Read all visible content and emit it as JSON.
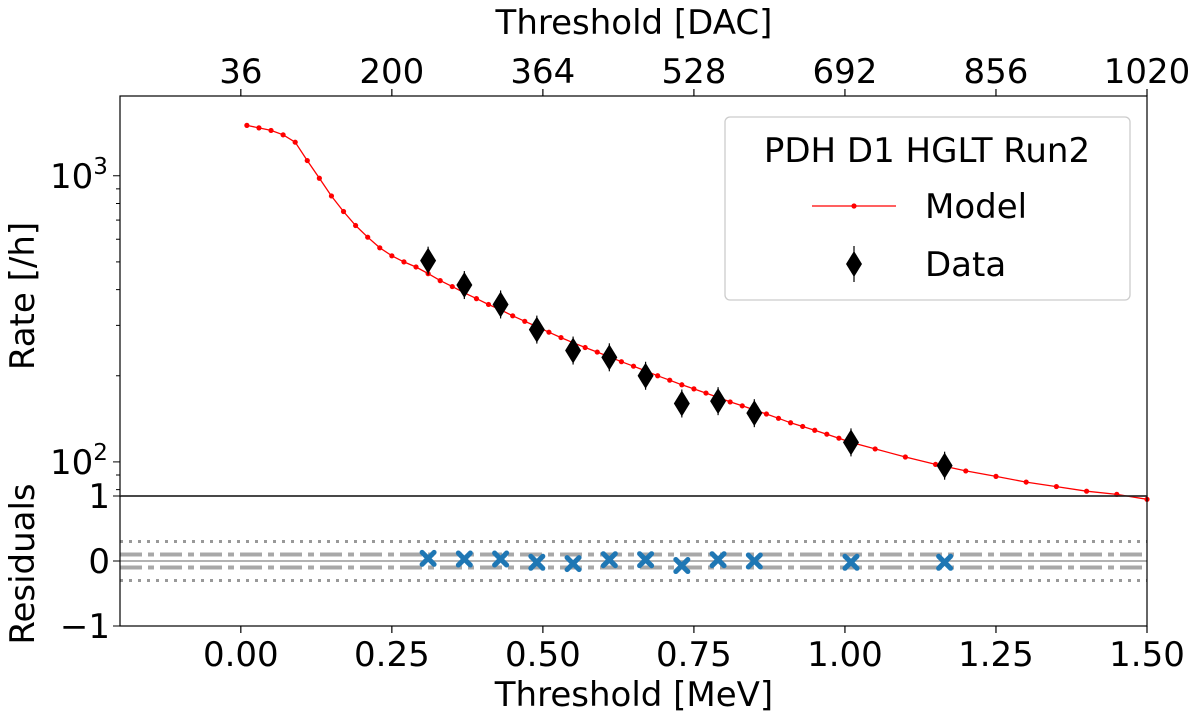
{
  "chart_data": [
    {
      "type": "line",
      "panel": "main",
      "x_top_label": "Threshold [DAC]",
      "x_top_ticks": [
        "36",
        "200",
        "364",
        "528",
        "692",
        "856",
        "1020"
      ],
      "ylabel": "Rate [/h]",
      "y_scale": "log",
      "y_ticks": [
        {
          "value": 100,
          "base": "10",
          "exp": "2"
        },
        {
          "value": 1000,
          "base": "10",
          "exp": "3"
        }
      ],
      "xlim": [
        -0.2,
        1.5
      ],
      "ylim": [
        76,
        1900
      ],
      "grid": false,
      "legend": {
        "position": "top-right",
        "title": "PDH D1 HGLT Run2",
        "entries": [
          {
            "label": "Model",
            "color": "#ff0000",
            "marker": "dot-line"
          },
          {
            "label": "Data",
            "color": "#000000",
            "marker": "diamond"
          }
        ]
      },
      "series": [
        {
          "name": "Model",
          "color": "#ff0000",
          "x": [
            0.01,
            0.03,
            0.05,
            0.07,
            0.09,
            0.11,
            0.13,
            0.15,
            0.17,
            0.19,
            0.21,
            0.23,
            0.25,
            0.27,
            0.29,
            0.31,
            0.33,
            0.35,
            0.37,
            0.39,
            0.41,
            0.43,
            0.45,
            0.47,
            0.49,
            0.51,
            0.53,
            0.55,
            0.57,
            0.59,
            0.61,
            0.63,
            0.65,
            0.67,
            0.69,
            0.71,
            0.73,
            0.75,
            0.77,
            0.79,
            0.81,
            0.83,
            0.85,
            0.87,
            0.89,
            0.91,
            0.93,
            0.95,
            0.97,
            0.99,
            1.01,
            1.05,
            1.1,
            1.15,
            1.2,
            1.25,
            1.3,
            1.35,
            1.4,
            1.45,
            1.5
          ],
          "values": [
            1500,
            1470,
            1440,
            1390,
            1310,
            1130,
            980,
            850,
            750,
            670,
            610,
            560,
            525,
            500,
            480,
            455,
            430,
            410,
            390,
            372,
            355,
            340,
            324,
            310,
            297,
            284,
            272,
            261,
            251,
            242,
            233,
            224,
            216,
            208,
            200,
            193,
            186,
            180,
            174,
            168,
            162,
            157,
            152,
            147,
            142,
            137,
            133,
            129,
            125,
            121,
            117,
            111,
            104,
            98,
            93,
            89,
            85,
            82,
            79,
            77,
            74
          ]
        },
        {
          "name": "Data",
          "color": "#000000",
          "marker": "diamond",
          "x": [
            0.31,
            0.37,
            0.43,
            0.49,
            0.55,
            0.61,
            0.67,
            0.73,
            0.79,
            0.85,
            1.01,
            1.165
          ],
          "values": [
            505,
            415,
            355,
            290,
            245,
            232,
            200,
            160,
            163,
            148,
            117,
            97
          ]
        }
      ]
    },
    {
      "type": "scatter",
      "panel": "residuals",
      "xlabel": "Threshold [MeV]",
      "ylabel": "Residuals",
      "x_ticks": [
        "0.00",
        "0.25",
        "0.50",
        "0.75",
        "1.00",
        "1.25",
        "1.50"
      ],
      "y_ticks": [
        "−1",
        "0",
        "1"
      ],
      "xlim": [
        -0.2,
        1.5
      ],
      "ylim": [
        -1,
        1
      ],
      "reference_lines": [
        {
          "y": 1,
          "style": "solid"
        },
        {
          "y": 0,
          "style": "solid"
        },
        {
          "y": 0.1,
          "style": "dashdot"
        },
        {
          "y": -0.1,
          "style": "dashdot"
        },
        {
          "y": 0.3,
          "style": "dotted"
        },
        {
          "y": -0.3,
          "style": "dotted"
        }
      ],
      "series": [
        {
          "color": "#1f77b4",
          "marker": "x",
          "x": [
            0.31,
            0.37,
            0.43,
            0.49,
            0.55,
            0.61,
            0.67,
            0.73,
            0.79,
            0.85,
            1.01,
            1.165
          ],
          "values": [
            0.04,
            0.03,
            0.03,
            -0.02,
            -0.04,
            0.02,
            0.02,
            -0.07,
            0.02,
            0.0,
            -0.02,
            -0.02
          ]
        }
      ]
    }
  ]
}
